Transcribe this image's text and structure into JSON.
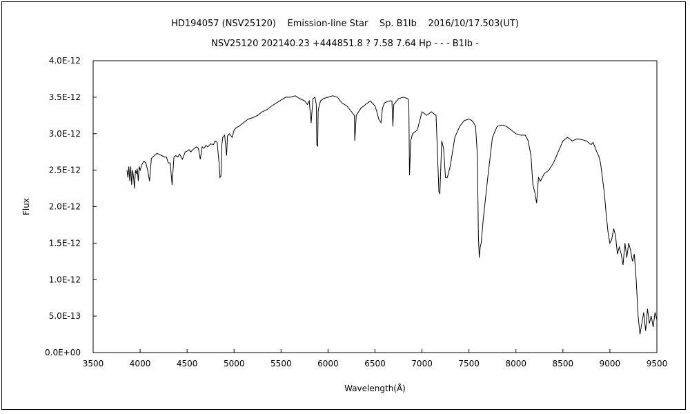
{
  "chart_data": {
    "type": "line",
    "title": "HD194057 (NSV25120)    Emission-line Star    Sp. B1Ib    2016/10/17.503(UT)",
    "subtitle": "NSV25120 202140.23 +444851.8 ? 7.58 7.64 Hp - - - B1Ib -",
    "xlabel": "Wavelength(Å)",
    "ylabel": "Flux",
    "xlim": [
      3500,
      9500
    ],
    "ylim": [
      0,
      4e-12
    ],
    "grid": false,
    "legend": "none",
    "line_color": "#000000",
    "x_ticks": [
      {
        "value": 3500,
        "label": "3500"
      },
      {
        "value": 4000,
        "label": "4000"
      },
      {
        "value": 4500,
        "label": "4500"
      },
      {
        "value": 5000,
        "label": "5000"
      },
      {
        "value": 5500,
        "label": "5500"
      },
      {
        "value": 6000,
        "label": "6000"
      },
      {
        "value": 6500,
        "label": "6500"
      },
      {
        "value": 7000,
        "label": "7000"
      },
      {
        "value": 7500,
        "label": "7500"
      },
      {
        "value": 8000,
        "label": "8000"
      },
      {
        "value": 8500,
        "label": "8500"
      },
      {
        "value": 9000,
        "label": "9000"
      },
      {
        "value": 9500,
        "label": "9500"
      }
    ],
    "y_ticks": [
      {
        "value": 0,
        "label": "0.0E+00"
      },
      {
        "value": 5e-13,
        "label": "5.0E-13"
      },
      {
        "value": 1e-12,
        "label": "1.0E-12"
      },
      {
        "value": 1.5e-12,
        "label": "1.5E-12"
      },
      {
        "value": 2e-12,
        "label": "2.0E-12"
      },
      {
        "value": 2.5e-12,
        "label": "2.5E-12"
      },
      {
        "value": 3e-12,
        "label": "3.0E-12"
      },
      {
        "value": 3.5e-12,
        "label": "3.5E-12"
      },
      {
        "value": 4e-12,
        "label": "4.0E-12"
      }
    ],
    "series": [
      {
        "x": [
          3860,
          3870,
          3880,
          3890,
          3900,
          3910,
          3920,
          3930,
          3940,
          3950,
          3960,
          3970,
          3980,
          3990,
          4000,
          4020,
          4040,
          4060,
          4080,
          4100,
          4120,
          4150,
          4180,
          4200,
          4230,
          4260,
          4280,
          4300,
          4320,
          4340,
          4360,
          4380,
          4400,
          4420,
          4450,
          4480,
          4500,
          4520,
          4540,
          4560,
          4580,
          4600,
          4620,
          4640,
          4660,
          4680,
          4700,
          4720,
          4750,
          4780,
          4800,
          4820,
          4840,
          4850,
          4860,
          4870,
          4880,
          4900,
          4920,
          4930,
          4950,
          4980,
          5000,
          5020,
          5050,
          5100,
          5150,
          5200,
          5250,
          5300,
          5350,
          5400,
          5450,
          5500,
          5550,
          5600,
          5650,
          5700,
          5750,
          5780,
          5800,
          5820,
          5840,
          5860,
          5875,
          5880,
          5890,
          5895,
          5900,
          5920,
          5950,
          6000,
          6050,
          6100,
          6150,
          6200,
          6250,
          6280,
          6285,
          6300,
          6350,
          6400,
          6450,
          6500,
          6520,
          6540,
          6563,
          6580,
          6600,
          6650,
          6680,
          6690,
          6700,
          6750,
          6800,
          6850,
          6860,
          6867,
          6880,
          6900,
          6950,
          7000,
          7050,
          7100,
          7150,
          7180,
          7190,
          7210,
          7230,
          7250,
          7270,
          7300,
          7350,
          7400,
          7450,
          7500,
          7530,
          7550,
          7570,
          7590,
          7600,
          7610,
          7620,
          7630,
          7650,
          7700,
          7750,
          7800,
          7850,
          7900,
          7950,
          8000,
          8050,
          8100,
          8130,
          8160,
          8180,
          8200,
          8220,
          8240,
          8260,
          8300,
          8350,
          8400,
          8450,
          8500,
          8550,
          8600,
          8650,
          8700,
          8750,
          8800,
          8820,
          8840,
          8860,
          8880,
          8900,
          8920,
          8940,
          8960,
          8980,
          9000,
          9020,
          9040,
          9060,
          9080,
          9100,
          9120,
          9140,
          9160,
          9180,
          9200,
          9220,
          9240,
          9260,
          9280,
          9300,
          9320,
          9340,
          9360,
          9380,
          9400,
          9420,
          9440,
          9460,
          9480,
          9500
        ],
        "y": [
          2.5e-12,
          2.4e-12,
          2.55e-12,
          2.35e-12,
          2.55e-12,
          2.3e-12,
          2.5e-12,
          2.4e-12,
          2.25e-12,
          2.5e-12,
          2.45e-12,
          2.52e-12,
          2.35e-12,
          2.55e-12,
          2.5e-12,
          2.58e-12,
          2.62e-12,
          2.6e-12,
          2.5e-12,
          2.35e-12,
          2.66e-12,
          2.7e-12,
          2.73e-12,
          2.72e-12,
          2.7e-12,
          2.68e-12,
          2.68e-12,
          2.6e-12,
          2.6e-12,
          2.3e-12,
          2.68e-12,
          2.7e-12,
          2.68e-12,
          2.72e-12,
          2.65e-12,
          2.75e-12,
          2.76e-12,
          2.78e-12,
          2.75e-12,
          2.78e-12,
          2.8e-12,
          2.82e-12,
          2.8e-12,
          2.65e-12,
          2.82e-12,
          2.8e-12,
          2.84e-12,
          2.82e-12,
          2.86e-12,
          2.85e-12,
          2.9e-12,
          2.88e-12,
          2.6e-12,
          2.4e-12,
          2.42e-12,
          2.85e-12,
          2.95e-12,
          2.98e-12,
          2.7e-12,
          2.97e-12,
          3e-12,
          2.95e-12,
          3.05e-12,
          3.08e-12,
          3.1e-12,
          3.15e-12,
          3.2e-12,
          3.22e-12,
          3.25e-12,
          3.3e-12,
          3.33e-12,
          3.38e-12,
          3.42e-12,
          3.46e-12,
          3.5e-12,
          3.5e-12,
          3.52e-12,
          3.48e-12,
          3.45e-12,
          3.4e-12,
          3.45e-12,
          3.15e-12,
          3.48e-12,
          3.5e-12,
          3.4e-12,
          2.85e-12,
          2.83e-12,
          3.3e-12,
          3.35e-12,
          3.45e-12,
          3.48e-12,
          3.5e-12,
          3.52e-12,
          3.5e-12,
          3.42e-12,
          3.38e-12,
          3.3e-12,
          3.25e-12,
          2.9e-12,
          3.25e-12,
          3.35e-12,
          3.4e-12,
          3.45e-12,
          3.38e-12,
          3.3e-12,
          3.2e-12,
          3.15e-12,
          3.35e-12,
          3.42e-12,
          3.45e-12,
          3.45e-12,
          3.1e-12,
          3.4e-12,
          3.48e-12,
          3.5e-12,
          3.48e-12,
          3.4e-12,
          2.43e-12,
          2.9e-12,
          3e-12,
          3.05e-12,
          3.3e-12,
          3.25e-12,
          3.3e-12,
          3.25e-12,
          2.2e-12,
          2.18e-12,
          2.9e-12,
          2.8e-12,
          2.4e-12,
          2.4e-12,
          2.55e-12,
          2.95e-12,
          3.1e-12,
          3.18e-12,
          3.2e-12,
          3.18e-12,
          3.15e-12,
          3.1e-12,
          2.7e-12,
          1.6e-12,
          1.3e-12,
          1.45e-12,
          1.5e-12,
          1.8e-12,
          2.4e-12,
          2.95e-12,
          3.1e-12,
          3.12e-12,
          3.1e-12,
          3.05e-12,
          3e-12,
          2.98e-12,
          2.98e-12,
          2.9e-12,
          2.7e-12,
          2.3e-12,
          2.2e-12,
          2.05e-12,
          2.4e-12,
          2.35e-12,
          2.45e-12,
          2.5e-12,
          2.6e-12,
          2.75e-12,
          2.9e-12,
          2.95e-12,
          2.9e-12,
          2.93e-12,
          2.92e-12,
          2.9e-12,
          2.85e-12,
          2.88e-12,
          2.82e-12,
          2.75e-12,
          2.7e-12,
          2.6e-12,
          2.4e-12,
          2.2e-12,
          1.9e-12,
          1.65e-12,
          1.5e-12,
          1.55e-12,
          1.7e-12,
          1.6e-12,
          1.35e-12,
          1.45e-12,
          1.35e-12,
          1.2e-12,
          1.5e-12,
          1.3e-12,
          1.5e-12,
          1.4e-12,
          1.25e-12,
          1.35e-12,
          1e-12,
          5e-13,
          2.5e-13,
          4e-13,
          5.5e-13,
          3e-13,
          6e-13,
          4e-13,
          5e-13,
          3.5e-13,
          5.5e-13,
          4.5e-13
        ]
      }
    ]
  }
}
